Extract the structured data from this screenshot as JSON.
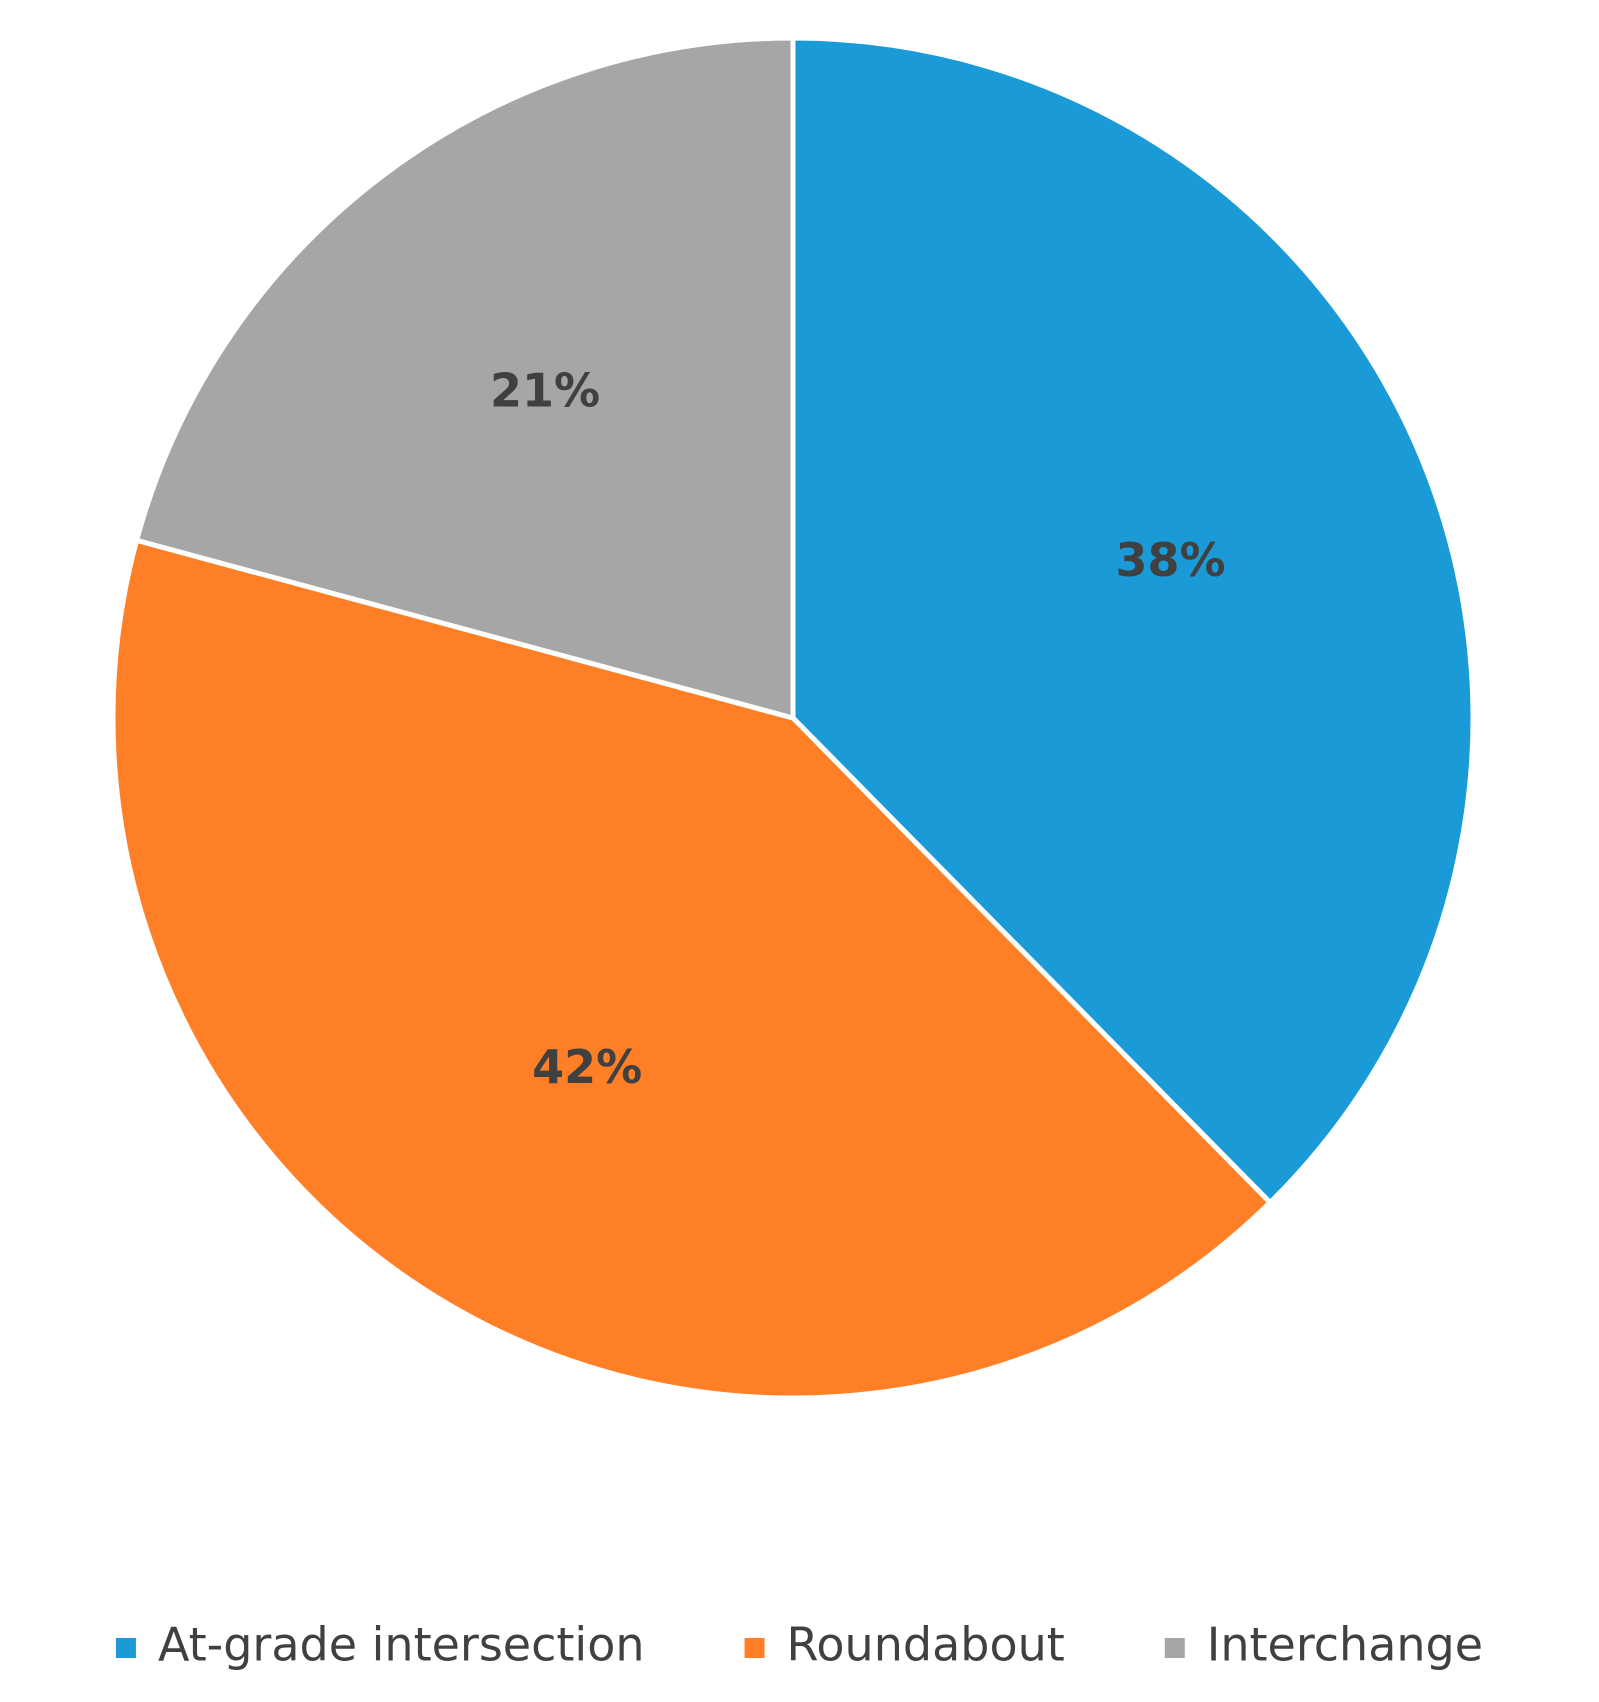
{
  "chart_data": {
    "type": "pie",
    "categories": [
      "At-grade intersection",
      "Roundabout",
      "Interchange"
    ],
    "values": [
      38,
      42,
      21
    ],
    "value_labels": [
      "38%",
      "42%",
      "21%"
    ],
    "colors": [
      "#1a9bd7",
      "#fe7f25",
      "#a6a6a6"
    ],
    "legend": "bottom"
  }
}
